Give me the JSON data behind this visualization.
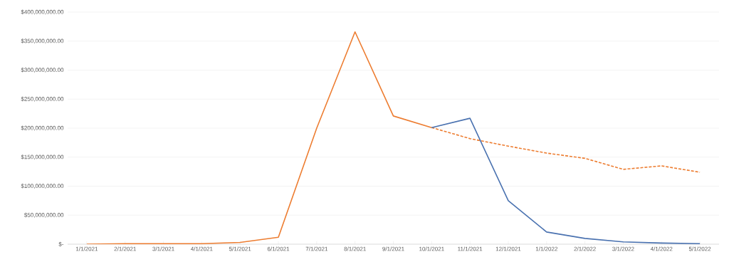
{
  "chart_data": {
    "type": "line",
    "categories": [
      "1/1/2021",
      "2/1/2021",
      "3/1/2021",
      "4/1/2021",
      "5/1/2021",
      "6/1/2021",
      "7/1/2021",
      "8/1/2021",
      "9/1/2021",
      "10/1/2021",
      "11/1/2021",
      "12/1/2021",
      "1/1/2022",
      "2/1/2022",
      "3/1/2022",
      "4/1/2022",
      "5/1/2022"
    ],
    "series": [
      {
        "color": "#ed7d31",
        "line_style": "solid",
        "values": [
          0,
          1000000,
          1000000,
          1000000,
          3000000,
          12000000,
          200000000,
          366000000,
          221000000,
          201000000,
          null,
          null,
          null,
          null,
          null,
          null,
          null
        ]
      },
      {
        "color": "#ed7d31",
        "line_style": "dashed",
        "values": [
          null,
          null,
          null,
          null,
          null,
          null,
          null,
          null,
          null,
          201000000,
          182000000,
          169000000,
          157000000,
          148000000,
          129000000,
          135000000,
          124000000
        ]
      },
      {
        "color": "#4a72b0",
        "line_style": "solid",
        "values": [
          null,
          null,
          null,
          null,
          null,
          null,
          null,
          null,
          null,
          201000000,
          217000000,
          75000000,
          21000000,
          10000000,
          4000000,
          2000000,
          1000000
        ]
      }
    ],
    "ylim": [
      0,
      400000000
    ],
    "yticks": [
      {
        "value": 0,
        "label": "$-"
      },
      {
        "value": 50000000,
        "label": "$50,000,000.00"
      },
      {
        "value": 100000000,
        "label": "$100,000,000.00"
      },
      {
        "value": 150000000,
        "label": "$150,000,000.00"
      },
      {
        "value": 200000000,
        "label": "$200,000,000.00"
      },
      {
        "value": 250000000,
        "label": "$250,000,000.00"
      },
      {
        "value": 300000000,
        "label": "$300,000,000.00"
      },
      {
        "value": 350000000,
        "label": "$350,000,000.00"
      },
      {
        "value": 400000000,
        "label": "$400,000,000.00"
      }
    ],
    "grid": "y",
    "marker": "none"
  }
}
